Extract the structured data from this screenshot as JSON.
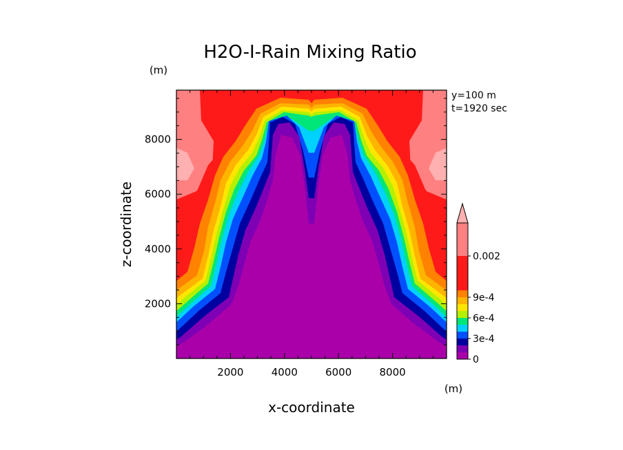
{
  "chart_data": {
    "type": "heatmap",
    "title": "H2O-I-Rain Mixing Ratio",
    "xlabel": "x-coordinate",
    "ylabel": "z-coordinate",
    "x_unit": "(m)",
    "y_unit": "(m)",
    "annotations": [
      "y=100 m",
      "t=1920 sec"
    ],
    "xlim": [
      0,
      10000
    ],
    "ylim": [
      0,
      9800
    ],
    "x_ticks": [
      2000,
      4000,
      6000,
      8000
    ],
    "y_ticks": [
      2000,
      4000,
      6000,
      8000
    ],
    "colorbar": {
      "tick_labels": [
        {
          "value": 0,
          "label": "0"
        },
        {
          "value": 0.0003,
          "label": "3e-4"
        },
        {
          "value": 0.0006,
          "label": "6e-4"
        },
        {
          "value": 0.0009,
          "label": "9e-4"
        },
        {
          "value": 0.002,
          "label": "0.002"
        }
      ],
      "levels": [
        {
          "from": 0,
          "to": 0.0001,
          "color": "#aa00aa"
        },
        {
          "from": 0.0001,
          "to": 0.0002,
          "color": "#7f00b4"
        },
        {
          "from": 0.0002,
          "to": 0.0003,
          "color": "#0000a0"
        },
        {
          "from": 0.0003,
          "to": 0.0004,
          "color": "#0050ff"
        },
        {
          "from": 0.0004,
          "to": 0.0005,
          "color": "#00d2ff"
        },
        {
          "from": 0.0005,
          "to": 0.0006,
          "color": "#00e678"
        },
        {
          "from": 0.0006,
          "to": 0.0007,
          "color": "#b4f000"
        },
        {
          "from": 0.0007,
          "to": 0.0008,
          "color": "#ffe600"
        },
        {
          "from": 0.0008,
          "to": 0.0009,
          "color": "#ffb400"
        },
        {
          "from": 0.0009,
          "to": 0.001,
          "color": "#ff8200"
        },
        {
          "from": 0.001,
          "to": 0.002,
          "color": "#ff1a1a"
        },
        {
          "from": 0.002,
          "to": 0.003,
          "color": "#ff8080"
        },
        {
          "from": 0.003,
          "to": null,
          "color": "#ffb0b0"
        }
      ]
    }
  }
}
